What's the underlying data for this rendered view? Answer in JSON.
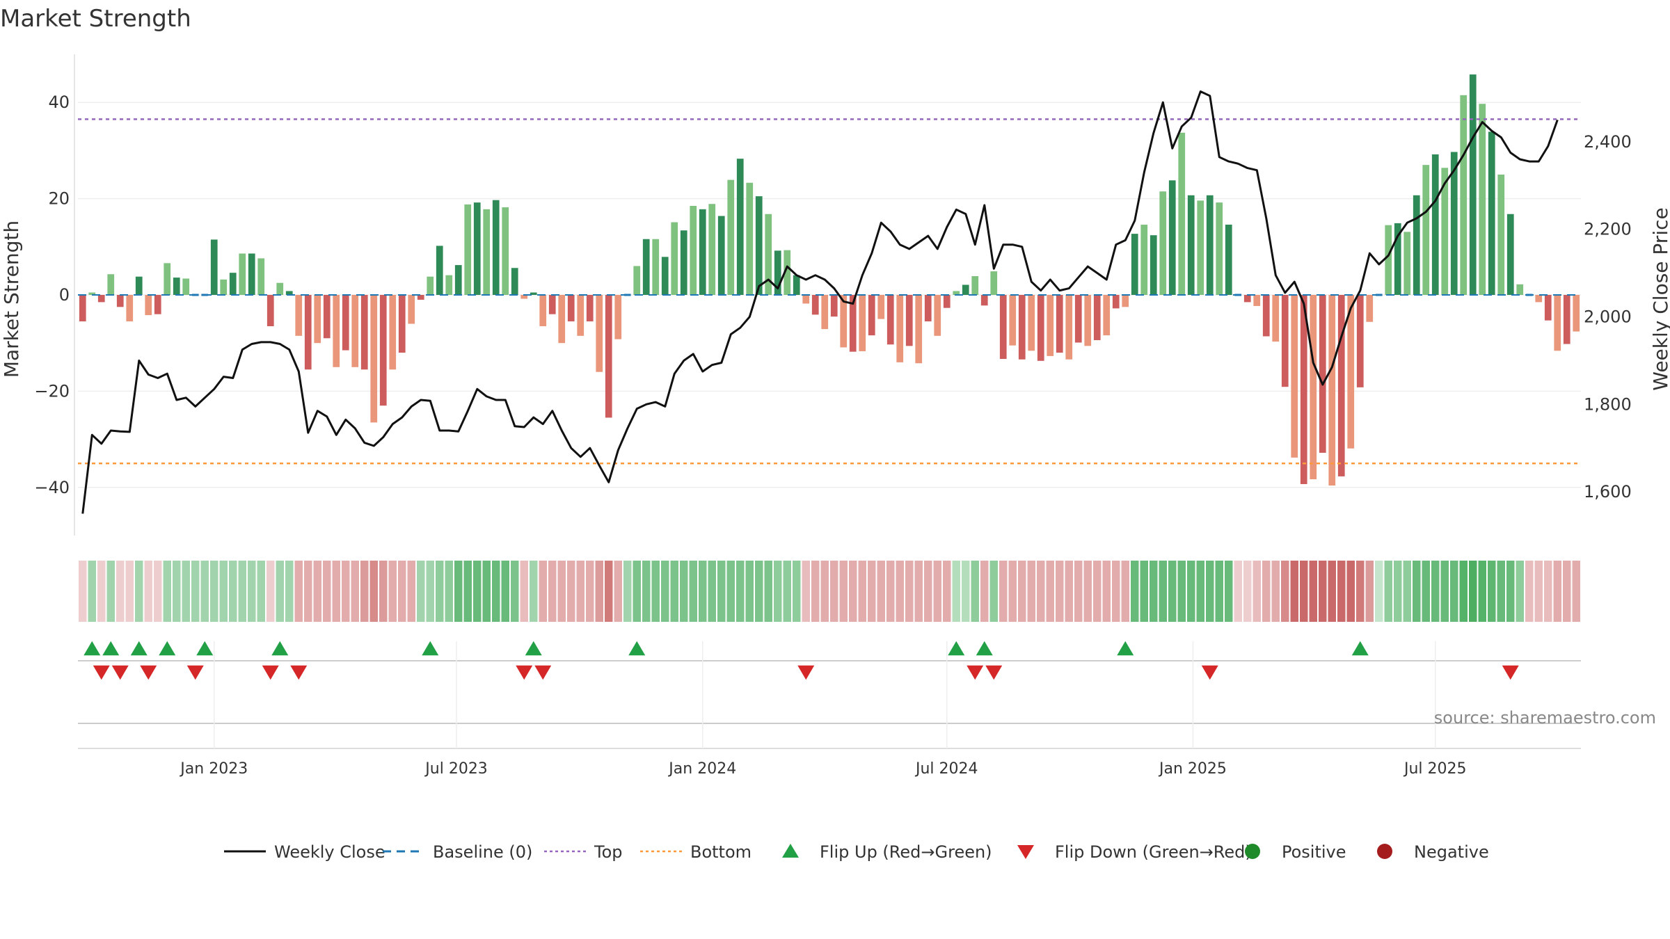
{
  "chart_data": {
    "type": "bar",
    "title": "Market Strength",
    "ylabel_left": "Market Strength",
    "ylabel_right": "Weekly Close Price",
    "left_ylim": [
      -50,
      50
    ],
    "left_ticks": [
      {
        "v": 40,
        "label": "40"
      },
      {
        "v": 20,
        "label": "20"
      },
      {
        "v": 0,
        "label": "0"
      },
      {
        "v": -20,
        "label": "−20"
      },
      {
        "v": -40,
        "label": "−40"
      }
    ],
    "right_ylim": [
      1500,
      2600
    ],
    "right_ticks": [
      {
        "v": 2400,
        "label": "2,400"
      },
      {
        "v": 2200,
        "label": "2,200"
      },
      {
        "v": 2000,
        "label": "2,000"
      },
      {
        "v": 1800,
        "label": "1,800"
      },
      {
        "v": 1600,
        "label": "1,600"
      }
    ],
    "top_line": 36.5,
    "bottom_line": -35.0,
    "date_ticks": [
      {
        "w": 14.5,
        "label": "Jan 2023"
      },
      {
        "w": 40.3,
        "label": "Jul 2023"
      },
      {
        "w": 66.5,
        "label": "Jan 2024"
      },
      {
        "w": 92.5,
        "label": "Jul 2024"
      },
      {
        "w": 118.7,
        "label": "Jan 2025"
      },
      {
        "w": 144.5,
        "label": "Jul 2025"
      }
    ],
    "strength": [
      -5.5,
      0.5,
      -1.5,
      4.3,
      -2.5,
      -5.5,
      3.8,
      -4.2,
      -4,
      6.6,
      3.6,
      3.4,
      0,
      0.2,
      11.5,
      3.2,
      4.6,
      8.6,
      8.6,
      7.6,
      -6.5,
      2.5,
      0.8,
      -8.5,
      -15.5,
      -10,
      -9,
      -15,
      -11.5,
      -15,
      -15.5,
      -26.5,
      -23,
      -15.5,
      -12,
      -6,
      -1,
      3.8,
      10.2,
      4.1,
      6.2,
      18.8,
      19.2,
      17.8,
      19.7,
      18.2,
      5.6,
      -0.8,
      0.5,
      -6.5,
      -4,
      -10,
      -5.5,
      -8.5,
      -5.5,
      -16,
      -25.5,
      -9.2,
      0,
      6,
      11.6,
      11.6,
      7.9,
      15.1,
      13.4,
      18.5,
      17.8,
      18.9,
      16.4,
      23.9,
      28.3,
      23.3,
      20.5,
      16.8,
      9.2,
      9.3,
      4.1,
      -1.8,
      -4.1,
      -7.1,
      -4.5,
      -10.9,
      -11.8,
      -11.7,
      -8.4,
      -5,
      -10.3,
      -14,
      -10.6,
      -14.2,
      -5.5,
      -8.5,
      -2.7,
      0.8,
      2.1,
      3.9,
      -2.2,
      4.9,
      -13.3,
      -10.5,
      -13.4,
      -11.6,
      -13.7,
      -12.7,
      -12,
      -13.4,
      -9.9,
      -10.6,
      -9.4,
      -8.4,
      -2.8,
      -2.5,
      12.7,
      14.6,
      12.4,
      21.5,
      23.8,
      33.7,
      20.7,
      19.6,
      20.7,
      19.2,
      14.6,
      0,
      -1.5,
      -2.3,
      -8.6,
      -9.7,
      -19.1,
      -33.8,
      -39.3,
      -38.3,
      -32.8,
      -39.6,
      -37.7,
      -31.9,
      -19.2,
      -5.6,
      0,
      14.5,
      14.9,
      13.1,
      20.7,
      27,
      29.2,
      26.4,
      29.7,
      41.5,
      45.8,
      39.7,
      33.9,
      25,
      16.8,
      2.2,
      0,
      -1.5,
      -5.3,
      -11.6,
      -10.2,
      -7.6
    ],
    "close": [
      1550,
      1730,
      1710,
      1740,
      1738,
      1737,
      1900,
      1868,
      1860,
      1870,
      1810,
      1815,
      1795,
      1815,
      1835,
      1863,
      1860,
      1925,
      1938,
      1942,
      1942,
      1938,
      1925,
      1875,
      1735,
      1785,
      1772,
      1730,
      1765,
      1745,
      1712,
      1705,
      1725,
      1755,
      1770,
      1795,
      1810,
      1808,
      1740,
      1740,
      1738,
      1785,
      1835,
      1818,
      1810,
      1810,
      1750,
      1748,
      1770,
      1755,
      1785,
      1740,
      1700,
      1680,
      1700,
      1660,
      1622,
      1695,
      1745,
      1790,
      1800,
      1805,
      1795,
      1870,
      1900,
      1915,
      1875,
      1890,
      1895,
      1960,
      1975,
      2000,
      2070,
      2085,
      2065,
      2115,
      2095,
      2085,
      2095,
      2085,
      2065,
      2035,
      2030,
      2095,
      2145,
      2215,
      2195,
      2165,
      2155,
      2170,
      2185,
      2155,
      2205,
      2245,
      2235,
      2165,
      2255,
      2110,
      2165,
      2165,
      2160,
      2080,
      2060,
      2085,
      2060,
      2065,
      2090,
      2115,
      2100,
      2085,
      2165,
      2175,
      2220,
      2330,
      2420,
      2490,
      2385,
      2435,
      2455,
      2515,
      2505,
      2365,
      2355,
      2350,
      2340,
      2335,
      2225,
      2095,
      2055,
      2080,
      2030,
      1895,
      1845,
      1885,
      1955,
      2020,
      2060,
      2145,
      2120,
      2140,
      2185,
      2215,
      2225,
      2240,
      2265,
      2305,
      2335,
      2370,
      2410,
      2445,
      2425,
      2410,
      2375,
      2360,
      2355,
      2355,
      2390,
      2450
    ],
    "colorband": [
      -0.3,
      0.5,
      -0.3,
      0.5,
      -0.3,
      -0.3,
      0.5,
      -0.3,
      -0.3,
      0.5,
      0.5,
      0.5,
      0.5,
      0.5,
      0.5,
      0.5,
      0.5,
      0.5,
      0.5,
      0.5,
      -0.3,
      0.5,
      0.5,
      -0.5,
      -0.5,
      -0.5,
      -0.5,
      -0.5,
      -0.5,
      -0.5,
      -0.6,
      -0.7,
      -0.6,
      -0.5,
      -0.5,
      -0.5,
      0.5,
      0.5,
      0.6,
      0.6,
      0.8,
      0.8,
      0.8,
      0.8,
      0.8,
      0.8,
      0.7,
      -0.4,
      0.5,
      -0.5,
      -0.5,
      -0.5,
      -0.5,
      -0.5,
      -0.5,
      -0.6,
      -0.8,
      -0.5,
      0.5,
      0.7,
      0.7,
      0.7,
      0.7,
      0.7,
      0.7,
      0.7,
      0.7,
      0.7,
      0.7,
      0.7,
      0.7,
      0.7,
      0.7,
      0.7,
      0.6,
      0.6,
      0.6,
      -0.4,
      -0.5,
      -0.5,
      -0.5,
      -0.5,
      -0.5,
      -0.5,
      -0.5,
      -0.5,
      -0.5,
      -0.5,
      -0.5,
      -0.5,
      -0.5,
      -0.5,
      -0.5,
      0.4,
      0.4,
      0.6,
      -0.5,
      0.6,
      -0.5,
      -0.5,
      -0.5,
      -0.5,
      -0.5,
      -0.5,
      -0.5,
      -0.5,
      -0.5,
      -0.5,
      -0.5,
      -0.5,
      -0.5,
      -0.5,
      0.8,
      0.8,
      0.8,
      0.8,
      0.8,
      0.8,
      0.8,
      0.8,
      0.8,
      0.8,
      0.8,
      -0.3,
      -0.3,
      -0.4,
      -0.5,
      -0.5,
      -0.7,
      -0.9,
      -0.9,
      -0.9,
      -0.9,
      -0.9,
      -0.9,
      -0.9,
      -0.8,
      -0.6,
      0.3,
      0.6,
      0.6,
      0.6,
      0.8,
      0.8,
      0.8,
      0.8,
      0.8,
      0.9,
      0.95,
      0.9,
      0.85,
      0.8,
      0.8,
      0.6,
      -0.4,
      -0.4,
      -0.4,
      -0.5,
      -0.5,
      -0.5
    ],
    "flip_up_weeks": [
      1,
      3,
      6,
      9,
      13,
      21,
      37,
      48,
      59,
      93,
      96,
      111,
      136
    ],
    "flip_down_weeks": [
      2,
      4,
      7,
      12,
      20,
      23,
      47,
      49,
      77,
      95,
      97,
      120,
      152
    ],
    "legend": [
      {
        "label": "Weekly Close",
        "kind": "line",
        "color": "#111111"
      },
      {
        "label": "Baseline (0)",
        "kind": "dash",
        "color": "#1f77b4"
      },
      {
        "label": "Top",
        "kind": "dot",
        "color": "#9467bd"
      },
      {
        "label": "Bottom",
        "kind": "dot",
        "color": "#ff9a3c"
      },
      {
        "label": "Flip Up (Red→Green)",
        "kind": "tri-up",
        "color": "#22a046"
      },
      {
        "label": "Flip Down (Green→Red)",
        "kind": "tri-down",
        "color": "#d62728"
      },
      {
        "label": "Positive",
        "kind": "circle",
        "color": "#1f8a2a"
      },
      {
        "label": "Negative",
        "kind": "circle",
        "color": "#a51c1c"
      }
    ],
    "source": "source: sharemaestro.com"
  },
  "colors": {
    "pos_strong": "#2e8b57",
    "pos_light": "#7fc17f",
    "neg_strong": "#cd5c5c",
    "neg_light": "#e9967a",
    "close_line": "#111111",
    "top_line": "#9467bd",
    "bottom_line": "#ff9a3c",
    "baseline": "#1f77b4",
    "flip_up": "#22a046",
    "flip_down": "#d62728"
  }
}
